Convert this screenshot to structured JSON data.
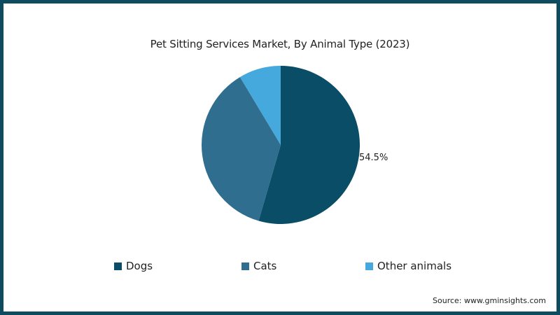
{
  "chart_data": {
    "type": "pie",
    "title": "Pet Sitting Services Market, By Animal Type (2023)",
    "categories": [
      "Dogs",
      "Cats",
      "Other animals"
    ],
    "values": [
      54.5,
      36.9,
      8.6
    ],
    "colors": [
      "#0a4d66",
      "#2f6e8f",
      "#45a9dd"
    ],
    "data_labels": [
      {
        "category": "Dogs",
        "label": "54.5%"
      }
    ],
    "legend_position": "bottom",
    "start_angle": "12 o'clock",
    "direction": "clockwise"
  },
  "chart": {
    "title": "Pet Sitting Services Market, By Animal Type (2023)",
    "dogs_label": "54.5%",
    "legend": [
      {
        "label": "Dogs",
        "color": "#0a4d66"
      },
      {
        "label": "Cats",
        "color": "#2f6e8f"
      },
      {
        "label": "Other animals",
        "color": "#45a9dd"
      }
    ],
    "source": "Source: www.gminsights.com"
  }
}
